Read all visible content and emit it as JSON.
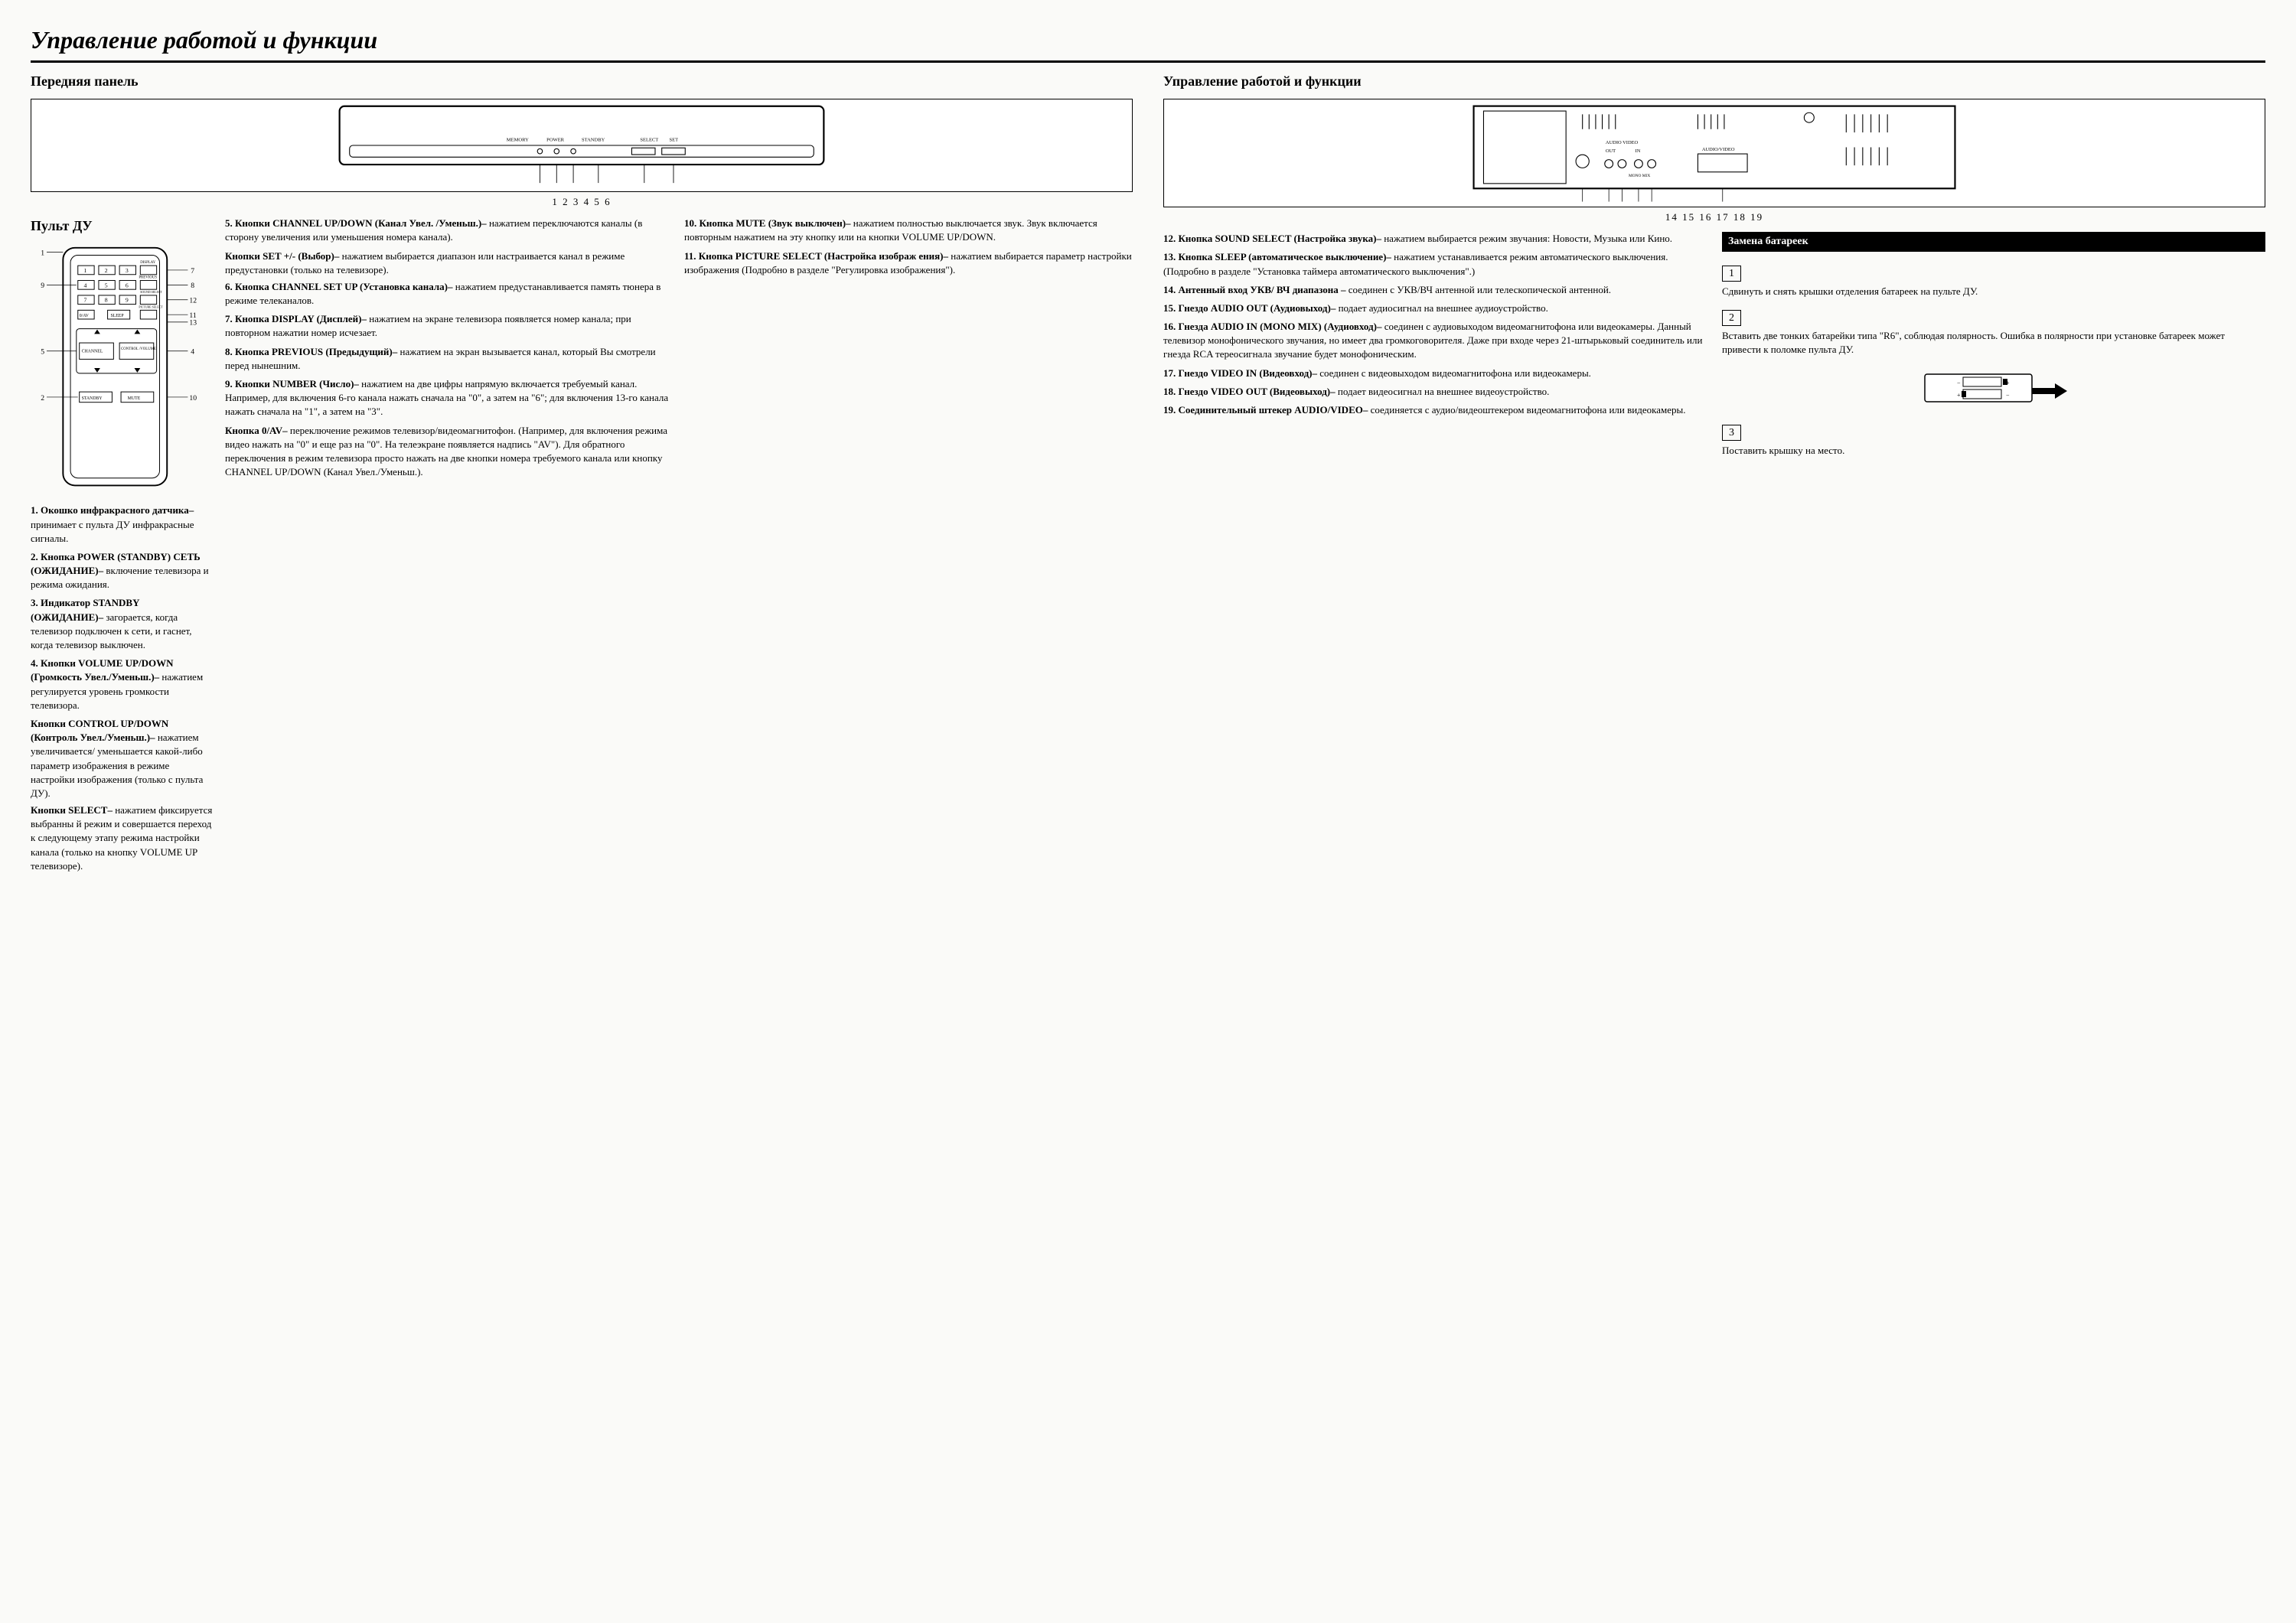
{
  "page_title": "Управление работой и функции",
  "left": {
    "front_panel_heading": "Передняя панель",
    "front_panel_numbers": "1  2  3  4        5   6",
    "remote_heading": "Пульт ДУ",
    "items_col1": [
      {
        "num": "1.",
        "title": "Окошко инфракрасного датчика– ",
        "text": "принимает с пульта ДУ инфракрасные сигналы."
      },
      {
        "num": "2.",
        "title": "Кнопка POWER (STANDBY) СЕТЬ (ОЖИДАНИЕ)– ",
        "text": "включение телевизора и режима ожидания."
      },
      {
        "num": "3.",
        "title": "Индикатор STANDBY (ОЖИДАНИЕ)– ",
        "text": "загорается, когда телевизор подключен к сети, и гаснет, когда телевизор выключен."
      },
      {
        "num": "4.",
        "title": "Кнопки VOLUME UP/DOWN (Громкость Увел./Уменьш.)– ",
        "text": "нажатием регулируется уровень громкости телевизора."
      }
    ],
    "item4_extra1_title": "Кнопки CONTROL UP/DOWN (Контроль Увел./Уменьш.)– ",
    "item4_extra1_text": "нажатием увеличивается/ уменьшается какой-либо параметр изображения в режиме настройки изображения (только с пульта ДУ).",
    "item4_extra2_title": "Кнопки SELECT– ",
    "item4_extra2_text": "нажатием фиксируется выбранны й режим и совершается переход к следующему этапу режима настройки канала (только на  кнопку VOLUME UP телевизоре).",
    "items_col2": [
      {
        "num": "5.",
        "title": "Кнопки CHANNEL UP/DOWN (Канал Увел. /Уменьш.)– ",
        "text": "нажатием переключаются каналы (в сторону увеличения или уменьшения номера канала)."
      }
    ],
    "item5_extra_title": "Кнопки SET +/- (Выбор)– ",
    "item5_extra_text": "нажатием выбирается диапазон или настраивается канал в режиме предустановки (только на телевизоре).",
    "items_col2b": [
      {
        "num": "6.",
        "title": "Кнопка CHANNEL SET UP (Установка канала)– ",
        "text": "нажатием предустанавливается память тюнера в режиме телеканалов."
      },
      {
        "num": "7.",
        "title": "Кнопка DISPLAY (Дисплей)– ",
        "text": "нажатием на экране телевизора появляется номер канала; при повторном нажатии номер исчезает."
      },
      {
        "num": "8.",
        "title": "Кнопка PREVIOUS (Предыдущий)– ",
        "text": "нажатием на экран вызывается канал, который Вы смотрели перед нынешним."
      },
      {
        "num": "9.",
        "title": "Кнопки NUMBER (Число)– ",
        "text": "нажатием на две цифры напрямую включается требуемый канал. Например, для включения 6-го канала нажать сначала на \"0\", а затем на \"6\"; для включения 13-го канала нажать сначала на \"1\", а затем на  \"3\"."
      }
    ],
    "item9_extra_title": "Кнопка 0/AV– ",
    "item9_extra_text": "переключение режимов телевизор/видеомагнитофон. (Например, для включения режима видео нажать на \"0\" и еще раз на \"0\". На телеэкране появляется надпись \"AV\"). Для обратного переключения в режим телевизора просто нажать на две кнопки номера требуемого канала или кнопку CHANNEL UP/DOWN (Канал Увел./Уменьш.).",
    "items_col2c": [
      {
        "num": "10.",
        "title": "Кнопка MUTE (Звук выключен)–  ",
        "text": "нажатием полностью выключается звук. Звук включается повторным нажатием на эту кнопку или на кнопки  VOLUME UP/DOWN."
      },
      {
        "num": "11.",
        "title": "Кнопка PICTURE SELECT (Настройка изображ ения)– ",
        "text": "нажатием выбирается параметр настройки изображения (Подробно в разделе \"Регулировка изображения\")."
      }
    ]
  },
  "right": {
    "rear_heading": "Управление работой и функции",
    "rear_numbers": "14   15 16 17 18   19",
    "items": [
      {
        "num": "12.",
        "title": "Кнопка SOUND SELECT (Настройка звука)– ",
        "text": "нажатием выбирается режим звучания: Новости, Музыка или Кино."
      },
      {
        "num": "13.",
        "title": "Кнопка SLEEP (автоматическое выключение)–  ",
        "text": "нажатием устанавливается режим автоматического выключения. (Подробно в разделе \"Установка таймера автоматического выключения\".)"
      },
      {
        "num": "14.",
        "title": "Антенный вход УКВ/ ВЧ диапазона –  ",
        "text": "соединен с УКВ/ВЧ антенной или телескопической антенной."
      },
      {
        "num": "15.",
        "title": "Гнездо AUDIO OUT (Аудиовыход)–  ",
        "text": "подает аудиосигнал на внешнее аудиоустройство."
      },
      {
        "num": "16.",
        "title": "Гнезда AUDIO IN (MONO MIX) (Аудиовход)– ",
        "text": "соединен с аудиовыходом видеомагнитофона или видеокамеры. Данный телевизор монофонического звучания, но имеет два громкоговорителя. Даже при входе через 21-штырьковый соединитель или гнезда RCA тереосигнала звучание будет монофоническим."
      },
      {
        "num": "17.",
        "title": "Гнездо VIDEO IN (Видеовход)– ",
        "text": "соединен с видеовыходом видеомагнитофона или видеокамеры."
      },
      {
        "num": "18.",
        "title": "Гнездо VIDEO OUT (Видеовыход)–  ",
        "text": "подает видеосигнал на внешнее видеоустройство."
      },
      {
        "num": "19.",
        "title": "Соединительный штекер AUDIO/VIDEO– ",
        "text": "соединяется с аудио/видеоштекером видеомагнитофона или видеокамеры."
      }
    ],
    "battery": {
      "heading": "Замена батареек",
      "step1_num": "1",
      "step1_text": "Сдвинуть и снять крышки отделения батареек на пульте ДУ.",
      "step2_num": "2",
      "step2_text": "Вставить две тонких батарейки типа \"R6\", соблюдая полярность. Ошибка в полярности при установке батареек может привести к поломке пульта ДУ.",
      "step3_num": "3",
      "step3_text": "Поставить крышку на место."
    }
  },
  "remote_labels": {
    "display": "DISPLAY",
    "previous": "PREVIOUS",
    "sound_select": "SOUND SELECT",
    "picture_select": "PICTURE SELECT",
    "sleep": "SLEEP",
    "av": "0/AV",
    "channel": "CHANNEL",
    "control_volume": "CONTROL /VOLUME",
    "standby": "STANDBY",
    "mute": "MUTE"
  },
  "front_panel_labels": {
    "memory": "MEMORY",
    "power": "POWER",
    "standby": "STANDBY",
    "select": "SELECT",
    "set": "SET"
  },
  "rear_panel_labels": {
    "audio_video": "AUDIO VIDEO",
    "out": "OUT",
    "in": "IN",
    "mono_mix": "MONO MIX",
    "av_connector": "AUDIO/VIDEO"
  },
  "colors": {
    "text": "#000000",
    "bg": "#fafaf8",
    "rule": "#000000"
  }
}
